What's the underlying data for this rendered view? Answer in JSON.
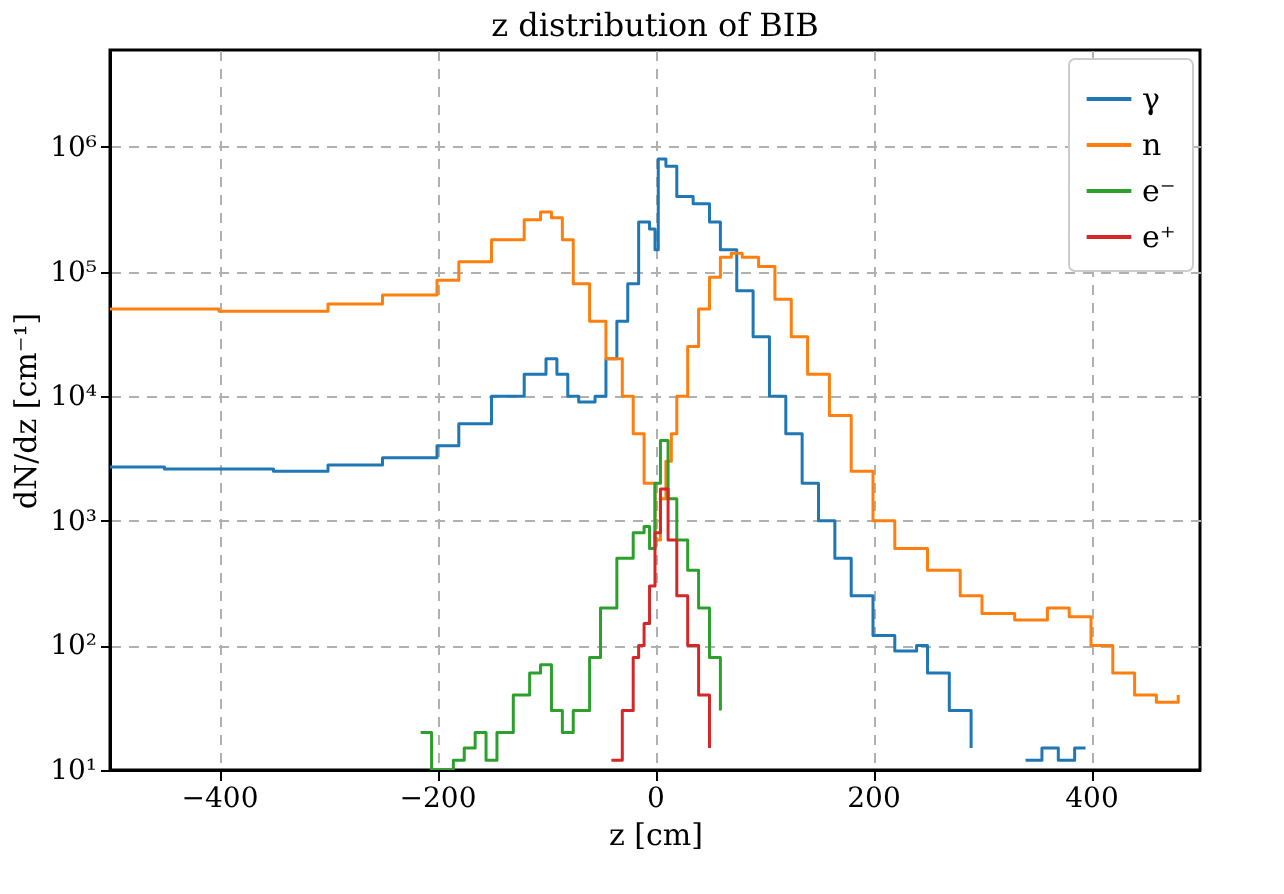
{
  "chart_data": {
    "type": "step",
    "title": "z distribution of BIB",
    "xlabel": "z [cm]",
    "ylabel": "dN/dz [cm⁻¹]",
    "xlim": [
      -500,
      500
    ],
    "xticks": [
      -400,
      -200,
      0,
      200,
      400
    ],
    "ylim": [
      10,
      6000000
    ],
    "log": true,
    "yticks": [
      {
        "value": 10,
        "label": "10¹"
      },
      {
        "value": 100,
        "label": "10²"
      },
      {
        "value": 1000,
        "label": "10³"
      },
      {
        "value": 10000,
        "label": "10⁴"
      },
      {
        "value": 100000,
        "label": "10⁵"
      },
      {
        "value": 1000000,
        "label": "10⁶"
      }
    ],
    "grid": true,
    "legend": "top right",
    "series": [
      {
        "name": "γ",
        "color": "#1f77b4",
        "x": [
          -500,
          -450,
          -400,
          -350,
          -300,
          -250,
          -200,
          -180,
          -150,
          -120,
          -100,
          -90,
          -80,
          -70,
          -55,
          -45,
          -35,
          -25,
          -15,
          -5,
          0,
          3,
          10,
          20,
          35,
          50,
          60,
          75,
          90,
          105,
          120,
          135,
          150,
          165,
          180,
          200,
          220,
          240,
          250,
          270,
          290,
          300,
          340,
          355,
          370,
          385,
          395
        ],
        "values": [
          2700,
          2600,
          2600,
          2500,
          2800,
          3200,
          4000,
          6000,
          10000,
          15000,
          20000,
          15000,
          10000,
          9000,
          10000,
          20000,
          40000,
          80000,
          250000,
          220000,
          150000,
          800000,
          700000,
          400000,
          350000,
          250000,
          150000,
          70000,
          30000,
          10000,
          5000,
          2000,
          1000,
          500,
          250,
          120,
          90,
          100,
          60,
          30,
          15,
          null,
          12,
          15,
          12,
          15,
          15
        ]
      },
      {
        "name": "n",
        "color": "#ff7f0e",
        "x": [
          -500,
          -400,
          -350,
          -300,
          -250,
          -200,
          -180,
          -150,
          -120,
          -105,
          -95,
          -85,
          -75,
          -60,
          -45,
          -30,
          -20,
          -10,
          0,
          5,
          10,
          15,
          20,
          30,
          40,
          50,
          60,
          70,
          80,
          95,
          110,
          125,
          140,
          160,
          180,
          200,
          220,
          250,
          280,
          300,
          330,
          360,
          380,
          400,
          420,
          440,
          460,
          480
        ],
        "values": [
          50000,
          48000,
          48000,
          55000,
          65000,
          85000,
          120000,
          180000,
          260000,
          300000,
          270000,
          180000,
          80000,
          40000,
          20000,
          10000,
          5000,
          2000,
          700,
          1500,
          3000,
          5000,
          10000,
          25000,
          50000,
          90000,
          130000,
          140000,
          130000,
          110000,
          60000,
          30000,
          15000,
          7000,
          2500,
          1000,
          600,
          400,
          250,
          180,
          160,
          200,
          170,
          100,
          60,
          40,
          35,
          40
        ]
      },
      {
        "name": "e⁻",
        "color": "#2ca02c",
        "x": [
          -215,
          -205,
          -185,
          -175,
          -165,
          -155,
          -145,
          -130,
          -115,
          -105,
          -95,
          -85,
          -75,
          -60,
          -50,
          -35,
          -20,
          -10,
          -5,
          0,
          5,
          12,
          20,
          30,
          40,
          50,
          60
        ],
        "values": [
          20,
          10,
          12,
          15,
          20,
          12,
          20,
          40,
          60,
          70,
          30,
          20,
          30,
          80,
          200,
          500,
          800,
          900,
          600,
          2000,
          4400,
          1500,
          700,
          400,
          200,
          80,
          30
        ]
      },
      {
        "name": "e⁺",
        "color": "#d62728",
        "x": [
          -40,
          -30,
          -20,
          -15,
          -10,
          -5,
          0,
          5,
          12,
          20,
          30,
          40,
          50
        ],
        "values": [
          12,
          30,
          80,
          100,
          150,
          300,
          800,
          1800,
          700,
          250,
          100,
          40,
          15
        ]
      }
    ]
  }
}
